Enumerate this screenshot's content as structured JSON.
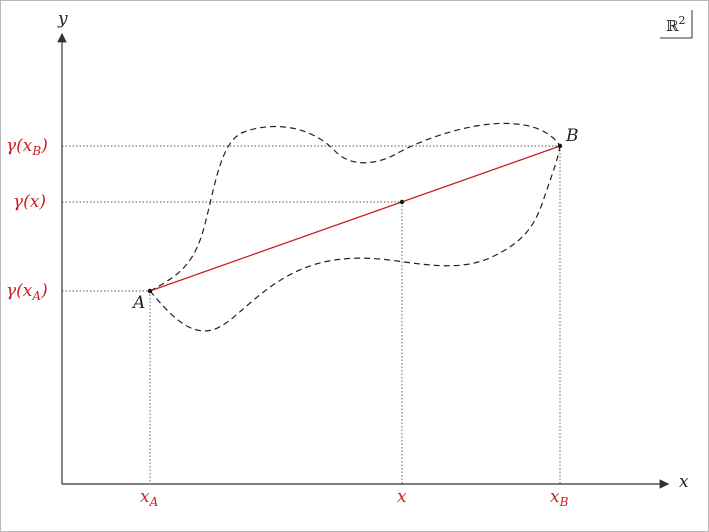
{
  "axes": {
    "x_label": "x",
    "y_label": "y"
  },
  "space_badge": {
    "main": "ℝ",
    "sup": "2"
  },
  "points": {
    "A": {
      "label": "A"
    },
    "B": {
      "label": "B"
    }
  },
  "ticks": {
    "x": [
      {
        "main": "x",
        "sub": "A"
      },
      {
        "main": "x",
        "sub": ""
      },
      {
        "main": "x",
        "sub": "B"
      }
    ],
    "y": [
      {
        "main": "γ(x",
        "sub": "B",
        "close": ")"
      },
      {
        "main": "γ(x)",
        "sub": "",
        "close": ""
      },
      {
        "main": "γ(x",
        "sub": "A",
        "close": ")"
      }
    ]
  },
  "colors": {
    "frame": "#b9b9b9",
    "axis": "#333333",
    "chord": "#cc1f1f",
    "dashed": "#222222",
    "guide": "#555555",
    "label_red": "#cc1f1f"
  }
}
